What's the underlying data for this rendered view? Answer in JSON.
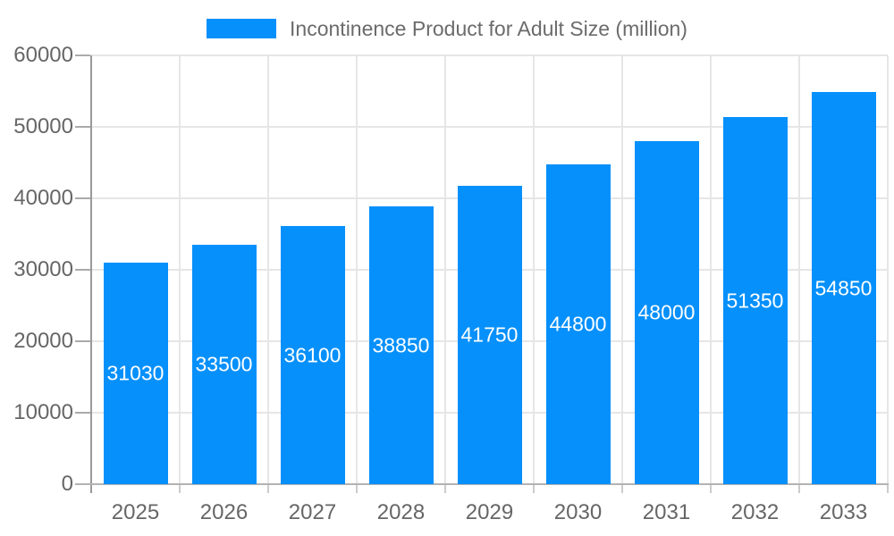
{
  "chart_data": {
    "type": "bar",
    "title": "Incontinence Product for Adult Size (million)",
    "categories": [
      "2025",
      "2026",
      "2027",
      "2028",
      "2029",
      "2030",
      "2031",
      "2032",
      "2033"
    ],
    "values": [
      31030,
      33500,
      36100,
      38850,
      41750,
      44800,
      48000,
      51350,
      54850
    ],
    "value_labels": [
      "31030",
      "33500",
      "36100",
      "38850",
      "41750",
      "44800",
      "48000",
      "51350",
      "54850"
    ],
    "xlabel": "",
    "ylabel": "",
    "ylim": [
      0,
      60000
    ],
    "yticks": [
      0,
      10000,
      20000,
      30000,
      40000,
      50000,
      60000
    ],
    "ytick_labels": [
      "0",
      "10000",
      "20000",
      "30000",
      "40000",
      "50000",
      "60000"
    ],
    "grid": true,
    "legend_position": "top",
    "style": {
      "bar_color": "#0690fb",
      "annotation_color": "#ffffff",
      "gridline_color": "#e6e6e6",
      "axis_line_color": "#999999",
      "baseline_color": "#b3b3b3",
      "ytick_color": "#aaaaaa",
      "xtick_color": "#cccccc",
      "axis_text_color": "#666666",
      "legend_text_color": "#6b6b6b",
      "background": "#ffffff"
    }
  }
}
